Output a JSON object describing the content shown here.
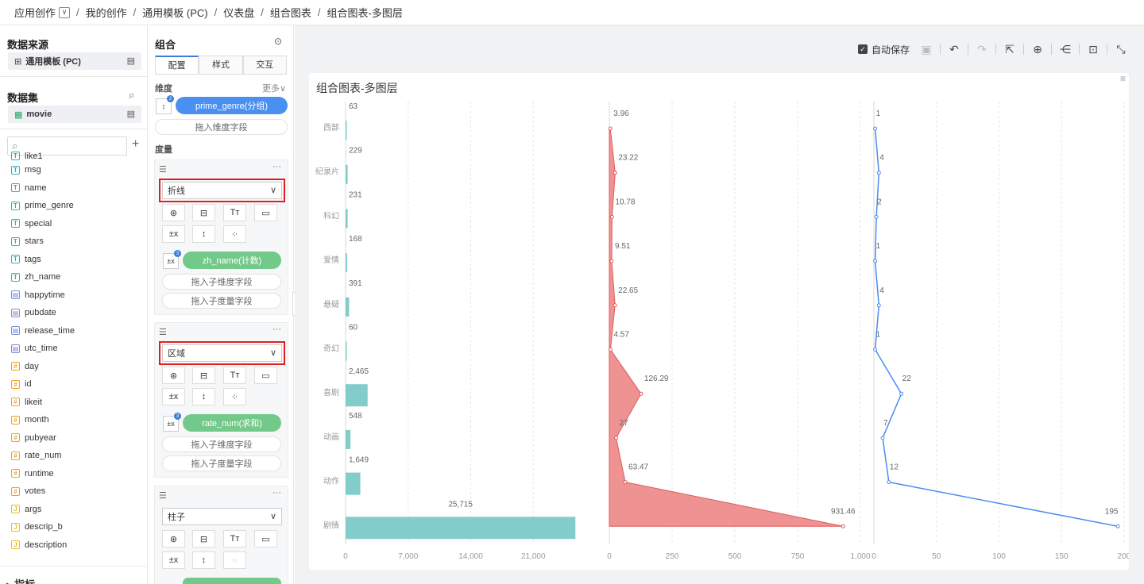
{
  "breadcrumb": [
    "应用创作",
    "我的创作",
    "通用模板 (PC)",
    "仪表盘",
    "组合图表",
    "组合图表-多图层"
  ],
  "left": {
    "datasource_title": "数据来源",
    "datasource_value": "通用模板 (PC)",
    "dataset_title": "数据集",
    "dataset_value": "movie",
    "search_placeholder": "",
    "fields": [
      {
        "type": "T",
        "name": "like1"
      },
      {
        "type": "T",
        "name": "msg"
      },
      {
        "type": "T",
        "name": "name"
      },
      {
        "type": "T",
        "name": "prime_genre"
      },
      {
        "type": "T",
        "name": "special"
      },
      {
        "type": "T",
        "name": "stars"
      },
      {
        "type": "T",
        "name": "tags"
      },
      {
        "type": "T",
        "name": "zh_name"
      },
      {
        "type": "D",
        "name": "happytime"
      },
      {
        "type": "D",
        "name": "pubdate"
      },
      {
        "type": "D",
        "name": "release_time"
      },
      {
        "type": "D",
        "name": "utc_time"
      },
      {
        "type": "#",
        "name": "day"
      },
      {
        "type": "#",
        "name": "id"
      },
      {
        "type": "#",
        "name": "likeit"
      },
      {
        "type": "#",
        "name": "month"
      },
      {
        "type": "#",
        "name": "pubyear"
      },
      {
        "type": "#",
        "name": "rate_num"
      },
      {
        "type": "#",
        "name": "runtime"
      },
      {
        "type": "#",
        "name": "votes"
      },
      {
        "type": "J",
        "name": "args"
      },
      {
        "type": "J",
        "name": "descrip_b"
      },
      {
        "type": "J",
        "name": "description"
      }
    ],
    "metrics_title": "指标"
  },
  "config": {
    "title": "组合",
    "tabs": [
      "配置",
      "样式",
      "交互"
    ],
    "dimension_label": "维度",
    "more_label": "更多",
    "dimension_pill": "prime_genre(分组)",
    "drop_dimension": "拖入维度字段",
    "measure_label": "度量",
    "layers": [
      {
        "chart_type": "折线",
        "pill": "zh_name(计数)",
        "drop_sub_dim": "拖入子维度字段",
        "drop_sub_measure": "拖入子度量字段"
      },
      {
        "chart_type": "区域",
        "pill": "rate_num(求和)",
        "drop_sub_dim": "拖入子维度字段",
        "drop_sub_measure": "拖入子度量字段"
      },
      {
        "chart_type": "柱子"
      }
    ]
  },
  "toolbar": {
    "autosave_label": "自动保存"
  },
  "chart_data": {
    "type": "bar",
    "title": "组合图表-多图层",
    "categories": [
      "西部",
      "纪录片",
      "科幻",
      "爱情",
      "悬疑",
      "奇幻",
      "喜剧",
      "动画",
      "动作",
      "剧情"
    ],
    "series": [
      {
        "values": [
          63,
          229,
          231,
          168,
          391,
          60,
          2465,
          548,
          1649,
          25715
        ],
        "labels": [
          "63",
          "229",
          "231",
          "168",
          "391",
          "60",
          "2,465",
          "548",
          "1,649",
          "25,715"
        ],
        "xticks": [
          "0",
          "7,000",
          "14,000",
          "21,000"
        ],
        "xmax": 28000,
        "color": "#82cccc"
      },
      {
        "values": [
          3.96,
          23.22,
          10.78,
          9.51,
          22.65,
          4.57,
          126.29,
          27.0,
          63.47,
          931.46
        ],
        "labels": [
          "3.96",
          "23.22",
          "10.78",
          "9.51",
          "22.65",
          "4.57",
          "126.29",
          "27",
          "63.47",
          "931.46"
        ],
        "xticks": [
          "0",
          "250",
          "500",
          "750",
          "1,000"
        ],
        "xmax": 1000,
        "color": "#ec7f7f"
      },
      {
        "values": [
          1,
          4,
          2,
          1,
          4,
          1,
          22,
          7,
          12,
          195
        ],
        "labels": [
          "1",
          "4",
          "2",
          "1",
          "4",
          "1",
          "22",
          "7",
          "12",
          "195"
        ],
        "xticks": [
          "0",
          "50",
          "100",
          "150",
          "200"
        ],
        "xmax": 200,
        "color": "#4a8df0"
      }
    ]
  }
}
